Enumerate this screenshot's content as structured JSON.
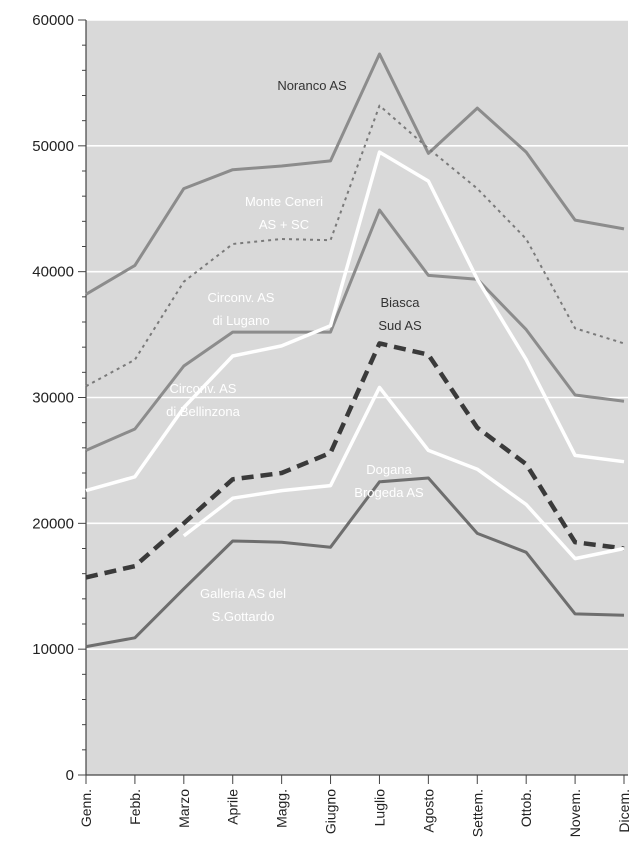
{
  "chart_data": {
    "type": "line",
    "ylim": [
      0,
      60000
    ],
    "yticks": [
      0,
      10000,
      20000,
      30000,
      40000,
      50000,
      60000
    ],
    "yticklabels": [
      "0",
      "10000",
      "20000",
      "30000",
      "40000",
      "50000",
      "60000"
    ],
    "categories": [
      "Genn.",
      "Febb.",
      "Marzo",
      "Aprile",
      "Magg.",
      "Giugno",
      "Luglio",
      "Agosto",
      "Settem.",
      "Ottob.",
      "Novem.",
      "Dicem."
    ],
    "grid": true,
    "series": [
      {
        "name": "Noranco AS",
        "label_lines": [
          "Noranco AS"
        ],
        "style": "solid",
        "color": "#8c8c8c",
        "values": [
          38200,
          40500,
          46600,
          48100,
          48400,
          48800,
          57300,
          49400,
          53000,
          49500,
          44100,
          43400
        ]
      },
      {
        "name": "Monte Ceneri AS + SC",
        "label_lines": [
          "Monte Ceneri",
          "AS + SC"
        ],
        "style": "dotted",
        "color": "#7a7a7a",
        "values": [
          30900,
          33000,
          39200,
          42200,
          42600,
          42500,
          53200,
          49800,
          46600,
          42600,
          35500,
          34300
        ]
      },
      {
        "name": "Circonv. AS di Lugano",
        "label_lines": [
          "Circonv. AS",
          "di Lugano"
        ],
        "style": "solid",
        "color": "#8c8c8c",
        "values": [
          25800,
          27500,
          32500,
          35200,
          35200,
          35200,
          44900,
          39700,
          39400,
          35400,
          30200,
          29700
        ]
      },
      {
        "name": "Circonv. AS di Bellinzona",
        "label_lines": [
          "Circonv. AS",
          "di Bellinzona"
        ],
        "style": "solid",
        "color": "#ffffff",
        "values": [
          22600,
          23700,
          29200,
          33300,
          34100,
          35700,
          49500,
          47200,
          39400,
          33000,
          25400,
          24900
        ]
      },
      {
        "name": "Biasca Sud AS",
        "label_lines": [
          "Biasca",
          "Sud AS"
        ],
        "style": "dashed",
        "color": "#3a3a3a",
        "values": [
          15700,
          16600,
          20000,
          23500,
          24000,
          25600,
          34300,
          33400,
          27600,
          24700,
          18500,
          18000
        ]
      },
      {
        "name": "Dogana Brogeda AS",
        "label_lines": [
          "Dogana",
          "Brogeda AS"
        ],
        "style": "solid",
        "color": "#ffffff",
        "values": [
          null,
          null,
          19000,
          22000,
          22600,
          23000,
          30800,
          25800,
          24300,
          21500,
          17200,
          18000
        ]
      },
      {
        "name": "Galleria AS del S.Gottardo",
        "label_lines": [
          "Galleria AS del",
          "S.Gottardo"
        ],
        "style": "solid",
        "color": "#6e6e6e",
        "values": [
          10200,
          10900,
          14800,
          18600,
          18500,
          18100,
          23300,
          23600,
          19200,
          17700,
          12800,
          12700
        ]
      }
    ]
  }
}
